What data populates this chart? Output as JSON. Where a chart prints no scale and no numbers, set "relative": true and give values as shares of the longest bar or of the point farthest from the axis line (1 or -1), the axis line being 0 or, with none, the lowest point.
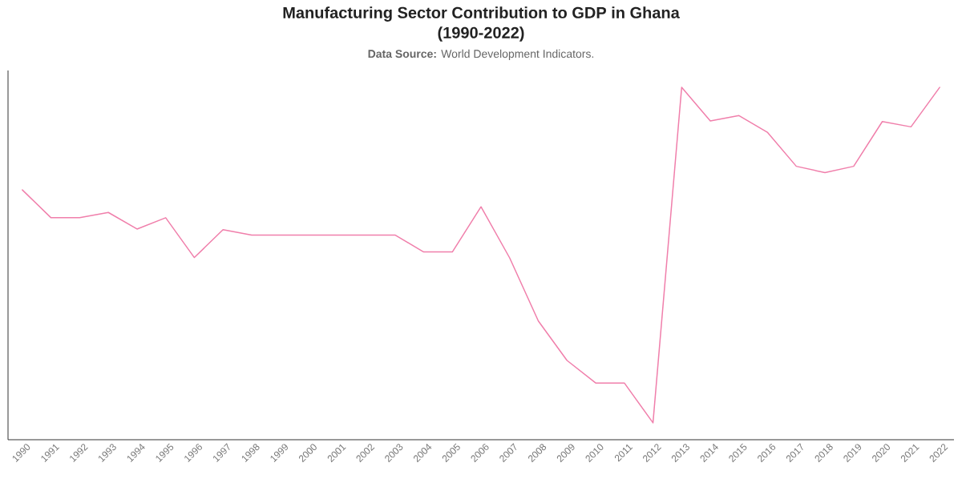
{
  "chart_data": {
    "type": "line",
    "title": "Manufacturing Sector Contribution to GDP in Ghana (1990-2022)",
    "subtitle": "**Data Source:** World Development Indicators.",
    "categories": [
      "1990",
      "1991",
      "1992",
      "1993",
      "1994",
      "1995",
      "1996",
      "1997",
      "1998",
      "1999",
      "2000",
      "2001",
      "2002",
      "2003",
      "2004",
      "2005",
      "2006",
      "2007",
      "2008",
      "2009",
      "2010",
      "2011",
      "2012",
      "2013",
      "2014",
      "2015",
      "2016",
      "2017",
      "2018",
      "2019",
      "2020",
      "2021",
      "2022"
    ],
    "values": [
      0.709,
      0.63,
      0.63,
      0.645,
      0.598,
      0.63,
      0.517,
      0.596,
      0.581,
      0.581,
      0.581,
      0.581,
      0.581,
      0.581,
      0.533,
      0.533,
      0.661,
      0.516,
      0.337,
      0.225,
      0.161,
      0.161,
      0.048,
      1.0,
      0.905,
      0.92,
      0.872,
      0.776,
      0.758,
      0.776,
      0.903,
      0.888,
      1.0
    ],
    "color": "#f07fab",
    "relative": true
  }
}
